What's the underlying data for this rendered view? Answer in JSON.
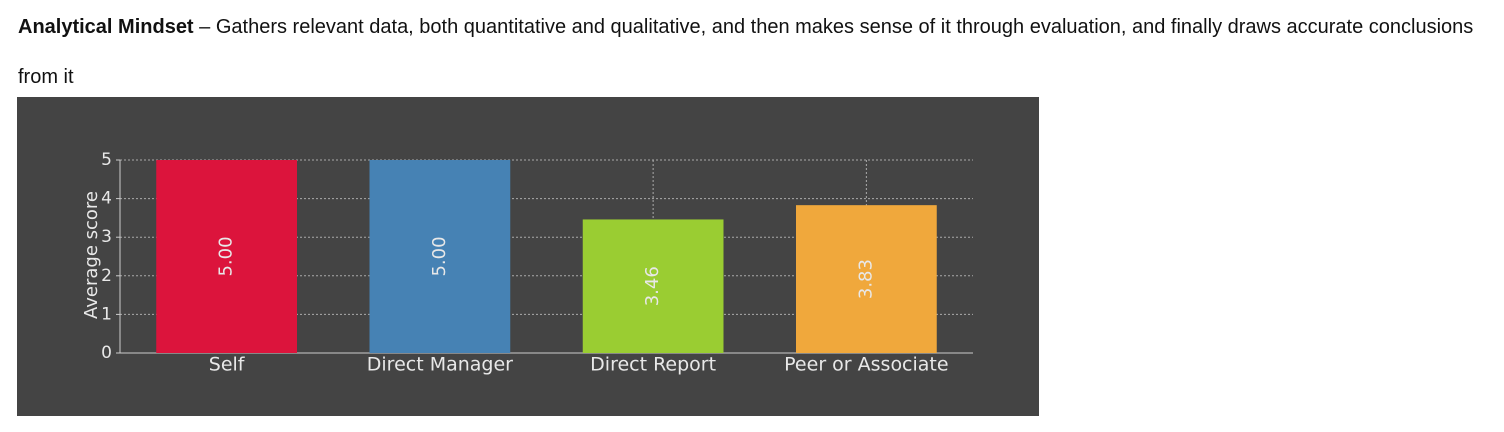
{
  "heading": {
    "term": "Analytical Mindset",
    "description": "– Gathers relevant data, both quantitative and qualitative, and then makes sense of it through evaluation, and finally draws accurate conclusions from it"
  },
  "chart_data": {
    "type": "bar",
    "y_label": "Average score",
    "categories": [
      "Self",
      "Direct Manager",
      "Direct Report",
      "Peer or Associate"
    ],
    "values": [
      5.0,
      5.0,
      3.46,
      3.83
    ],
    "value_labels": [
      "5.00",
      "5.00",
      "3.46",
      "3.83"
    ],
    "colors": [
      "#dc143c",
      "#4682b4",
      "#9acd32",
      "#f0a83c"
    ],
    "ylim": [
      0,
      5
    ],
    "yticks": [
      0,
      1,
      2,
      3,
      4,
      5
    ],
    "grid": true
  }
}
